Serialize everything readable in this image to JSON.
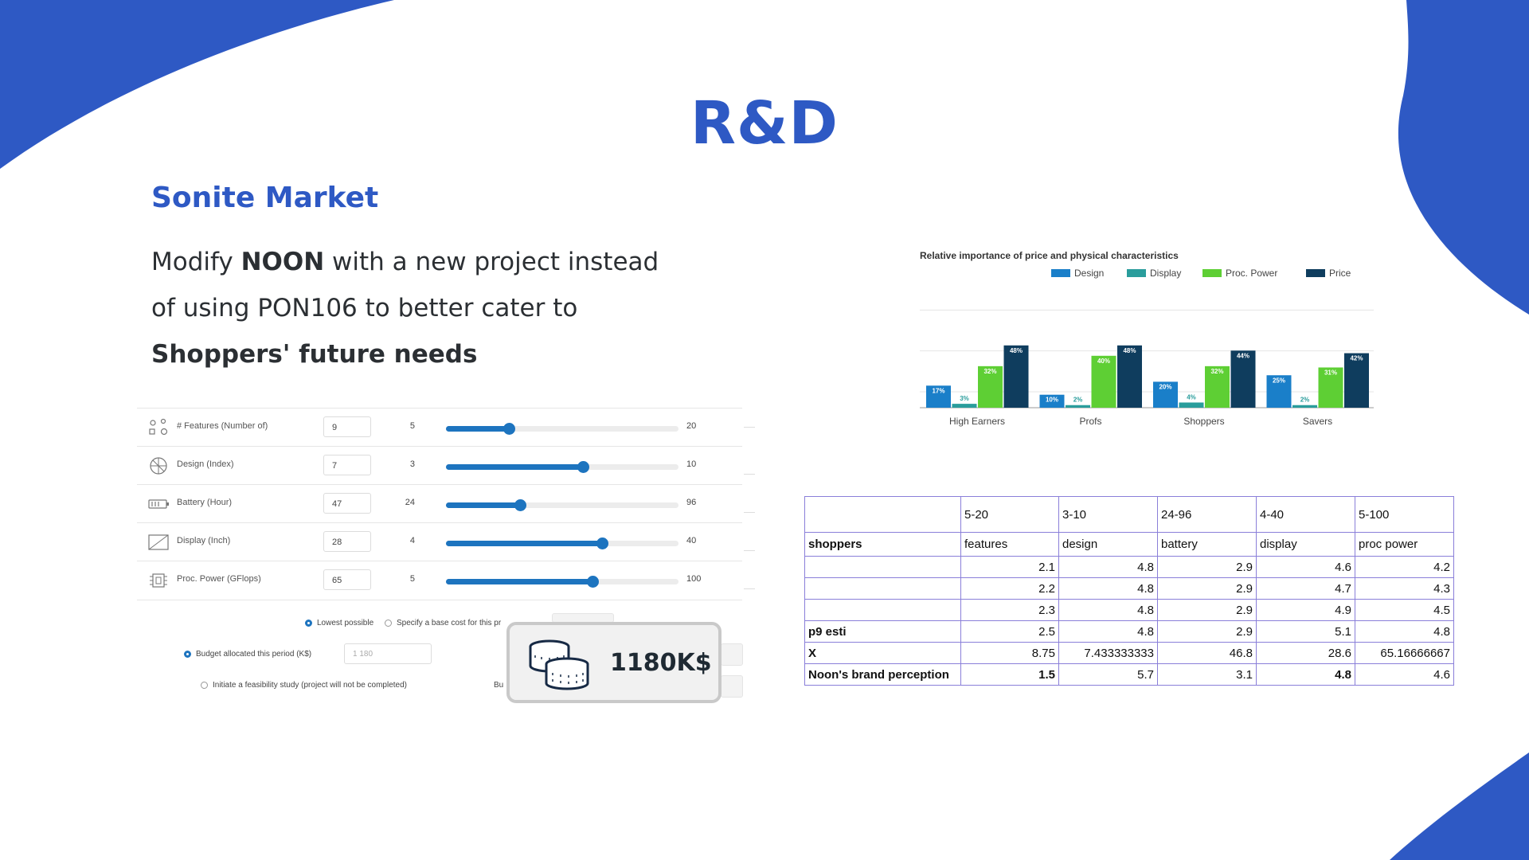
{
  "slide": {
    "title": "R&D",
    "subtitle": "Sonite Market",
    "text": {
      "p1": "Modify ",
      "b1": "NOON",
      "p2": " with a new project instead of using PON106 to better cater to ",
      "b2": "Shoppers' future needs"
    },
    "accent": "#2e59c4"
  },
  "sliders": [
    {
      "label": "# Features (Number of)",
      "value": "9",
      "min": "5",
      "max": "20",
      "level": 0.27,
      "icon": "features-icon"
    },
    {
      "label": "Design (Index)",
      "value": "7",
      "min": "3",
      "max": "10",
      "level": 0.59,
      "icon": "design-icon"
    },
    {
      "label": "Battery (Hour)",
      "value": "47",
      "min": "24",
      "max": "96",
      "level": 0.32,
      "icon": "battery-icon"
    },
    {
      "label": "Display (Inch)",
      "value": "28",
      "min": "4",
      "max": "40",
      "level": 0.67,
      "icon": "display-icon"
    },
    {
      "label": "Proc. Power (GFlops)",
      "value": "65",
      "min": "5",
      "max": "100",
      "level": 0.63,
      "icon": "processor-icon"
    }
  ],
  "options": {
    "lowest": "Lowest possible",
    "base_cost": "Specify a base cost for this pr",
    "budget_label": "Budget allocated this period (K$)",
    "budget_value": "1 180",
    "feasibility": "Initiate a feasibility study (project will not be completed)",
    "cut_text": "Bu"
  },
  "badge": {
    "amount": "1180K$",
    "icon": "coins-icon"
  },
  "chart_data": {
    "type": "bar",
    "title": "Relative importance of price and physical characteristics",
    "categories": [
      "High Earners",
      "Profs",
      "Shoppers",
      "Savers"
    ],
    "series": [
      {
        "name": "Design",
        "color": "#1a7fc9",
        "values": [
          17,
          10,
          20,
          25
        ]
      },
      {
        "name": "Display",
        "color": "#2a9d9c",
        "values": [
          3,
          2,
          4,
          2
        ]
      },
      {
        "name": "Proc. Power",
        "color": "#5ecf34",
        "values": [
          32,
          40,
          32,
          31
        ]
      },
      {
        "name": "Price",
        "color": "#0f3d5e",
        "values": [
          48,
          48,
          44,
          42
        ]
      }
    ],
    "ylim": [
      0,
      100
    ],
    "legend": "top-right",
    "grid": true
  },
  "table": {
    "header": [
      "",
      "5-20",
      "3-10",
      "24-96",
      "4-40",
      "5-100"
    ],
    "labels": [
      "shoppers",
      "features",
      "design",
      "battery",
      "display",
      "proc power"
    ],
    "rows": [
      {
        "label": "",
        "cells": [
          "2.1",
          "4.8",
          "2.9",
          "4.6",
          "4.2"
        ],
        "bold": []
      },
      {
        "label": "",
        "cells": [
          "2.2",
          "4.8",
          "2.9",
          "4.7",
          "4.3"
        ],
        "bold": []
      },
      {
        "label": "",
        "cells": [
          "2.3",
          "4.8",
          "2.9",
          "4.9",
          "4.5"
        ],
        "bold": []
      },
      {
        "label": "p9 esti",
        "cells": [
          "2.5",
          "4.8",
          "2.9",
          "5.1",
          "4.8"
        ],
        "bold": []
      },
      {
        "label": "X",
        "cells": [
          "8.75",
          "7.433333333",
          "46.8",
          "28.6",
          "65.16666667"
        ],
        "bold": []
      },
      {
        "label": "Noon's brand perception",
        "cells": [
          "1.5",
          "5.7",
          "3.1",
          "4.8",
          "4.6"
        ],
        "bold": [
          0,
          3
        ]
      }
    ]
  }
}
